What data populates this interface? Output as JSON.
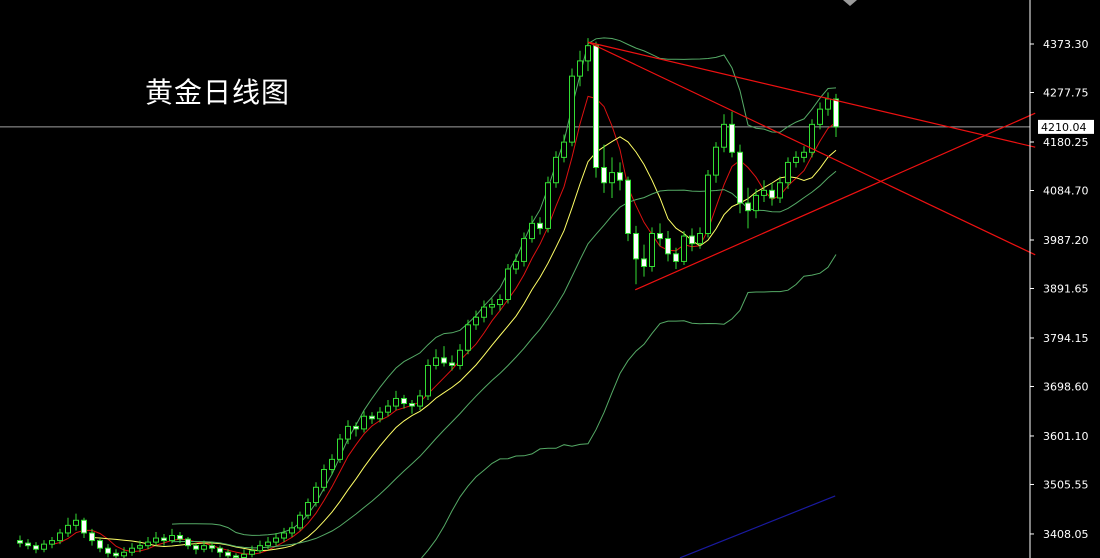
{
  "chart_data": {
    "type": "candlestick",
    "title": "黄金日线图",
    "xlabel": "",
    "ylabel": "",
    "ylim": [
      3360.7,
      4460.0
    ],
    "grid": false,
    "background": "#000000",
    "yticks": [
      "4373.30",
      "4277.75",
      "4180.25",
      "4084.70",
      "3987.20",
      "3891.65",
      "3794.15",
      "3698.60",
      "3601.10",
      "3505.55",
      "3408.05"
    ],
    "current_price": "4210.04",
    "colors": {
      "candle_outline": "#33dd33",
      "bull_fill": "#000000",
      "bear_fill": "#ffffff",
      "ma_fast": "#dd1111",
      "ma_slow": "#ffff66",
      "bands": "#55aa66",
      "trendline": "#ee1111",
      "channel": "#1a1aa0",
      "price_line": "#a0a0a0",
      "axis": "#ffffff"
    },
    "indicators": [
      {
        "type": "MA",
        "period": 5,
        "color_key": "ma_fast"
      },
      {
        "type": "MA",
        "period": 10,
        "color_key": "ma_slow"
      },
      {
        "type": "Bollinger",
        "period": 20,
        "deviation": 2,
        "color_key": "bands"
      }
    ],
    "trendlines": [
      {
        "from": [
          71,
          4377
        ],
        "to": [
          126.9,
          4170
        ],
        "color_key": "trendline"
      },
      {
        "from": [
          71,
          4377
        ],
        "to": [
          126.9,
          3958
        ],
        "color_key": "trendline"
      },
      {
        "from": [
          76.9,
          3889
        ],
        "to": [
          126.9,
          4237
        ],
        "color_key": "trendline"
      },
      {
        "from": [
          82.5,
          3361
        ],
        "to": [
          101.9,
          3483
        ],
        "color_key": "channel"
      }
    ],
    "ohlc": [
      [
        3395,
        3405,
        3382,
        3390
      ],
      [
        3390,
        3398,
        3378,
        3385
      ],
      [
        3385,
        3392,
        3370,
        3378
      ],
      [
        3378,
        3396,
        3372,
        3388
      ],
      [
        3388,
        3402,
        3380,
        3395
      ],
      [
        3395,
        3418,
        3388,
        3410
      ],
      [
        3410,
        3440,
        3402,
        3425
      ],
      [
        3425,
        3448,
        3415,
        3435
      ],
      [
        3435,
        3440,
        3400,
        3410
      ],
      [
        3410,
        3418,
        3385,
        3395
      ],
      [
        3395,
        3400,
        3372,
        3380
      ],
      [
        3380,
        3388,
        3362,
        3370
      ],
      [
        3370,
        3378,
        3355,
        3365
      ],
      [
        3365,
        3382,
        3358,
        3372
      ],
      [
        3372,
        3390,
        3365,
        3380
      ],
      [
        3380,
        3395,
        3372,
        3385
      ],
      [
        3385,
        3402,
        3378,
        3392
      ],
      [
        3392,
        3412,
        3385,
        3400
      ],
      [
        3400,
        3408,
        3385,
        3395
      ],
      [
        3395,
        3418,
        3390,
        3405
      ],
      [
        3405,
        3412,
        3390,
        3398
      ],
      [
        3398,
        3402,
        3378,
        3385
      ],
      [
        3385,
        3390,
        3368,
        3378
      ],
      [
        3378,
        3395,
        3372,
        3385
      ],
      [
        3385,
        3392,
        3372,
        3380
      ],
      [
        3380,
        3385,
        3362,
        3372
      ],
      [
        3372,
        3378,
        3355,
        3365
      ],
      [
        3365,
        3370,
        3350,
        3360
      ],
      [
        3360,
        3378,
        3355,
        3368
      ],
      [
        3368,
        3385,
        3362,
        3375
      ],
      [
        3375,
        3395,
        3370,
        3385
      ],
      [
        3385,
        3402,
        3378,
        3392
      ],
      [
        3392,
        3410,
        3385,
        3400
      ],
      [
        3400,
        3420,
        3392,
        3410
      ],
      [
        3410,
        3432,
        3402,
        3420
      ],
      [
        3420,
        3452,
        3415,
        3445
      ],
      [
        3445,
        3478,
        3438,
        3470
      ],
      [
        3470,
        3510,
        3462,
        3500
      ],
      [
        3500,
        3545,
        3492,
        3535
      ],
      [
        3535,
        3565,
        3525,
        3555
      ],
      [
        3555,
        3605,
        3548,
        3595
      ],
      [
        3595,
        3632,
        3585,
        3620
      ],
      [
        3620,
        3628,
        3600,
        3615
      ],
      [
        3615,
        3650,
        3608,
        3640
      ],
      [
        3640,
        3648,
        3625,
        3635
      ],
      [
        3635,
        3658,
        3628,
        3648
      ],
      [
        3648,
        3672,
        3640,
        3660
      ],
      [
        3660,
        3690,
        3652,
        3675
      ],
      [
        3675,
        3682,
        3655,
        3665
      ],
      [
        3665,
        3672,
        3645,
        3660
      ],
      [
        3660,
        3692,
        3652,
        3680
      ],
      [
        3680,
        3752,
        3672,
        3740
      ],
      [
        3740,
        3772,
        3732,
        3755
      ],
      [
        3755,
        3778,
        3738,
        3745
      ],
      [
        3745,
        3760,
        3730,
        3740
      ],
      [
        3740,
        3782,
        3732,
        3770
      ],
      [
        3770,
        3830,
        3762,
        3820
      ],
      [
        3820,
        3848,
        3810,
        3835
      ],
      [
        3835,
        3868,
        3825,
        3855
      ],
      [
        3855,
        3872,
        3840,
        3860
      ],
      [
        3860,
        3880,
        3848,
        3870
      ],
      [
        3870,
        3940,
        3862,
        3930
      ],
      [
        3930,
        3960,
        3920,
        3945
      ],
      [
        3945,
        4002,
        3935,
        3990
      ],
      [
        3990,
        4035,
        3982,
        4020
      ],
      [
        4020,
        4032,
        3998,
        4010
      ],
      [
        4010,
        4112,
        4002,
        4100
      ],
      [
        4100,
        4162,
        4090,
        4150
      ],
      [
        4150,
        4195,
        4140,
        4180
      ],
      [
        4180,
        4325,
        4172,
        4310
      ],
      [
        4310,
        4360,
        4290,
        4340
      ],
      [
        4340,
        4385,
        4320,
        4370
      ],
      [
        4370,
        4378,
        4110,
        4130
      ],
      [
        4130,
        4175,
        4080,
        4100
      ],
      [
        4100,
        4150,
        4070,
        4120
      ],
      [
        4120,
        4140,
        4085,
        4105
      ],
      [
        4105,
        4112,
        3985,
        4000
      ],
      [
        4000,
        4015,
        3900,
        3950
      ],
      [
        3950,
        3978,
        3915,
        3935
      ],
      [
        3935,
        4012,
        3925,
        4000
      ],
      [
        4000,
        4020,
        3975,
        3990
      ],
      [
        3990,
        4005,
        3945,
        3960
      ],
      [
        3960,
        3972,
        3930,
        3945
      ],
      [
        3945,
        4005,
        3938,
        3995
      ],
      [
        3995,
        4010,
        3965,
        3980
      ],
      [
        3980,
        4012,
        3970,
        4000
      ],
      [
        4000,
        4125,
        3992,
        4115
      ],
      [
        4115,
        4180,
        4100,
        4170
      ],
      [
        4170,
        4235,
        4160,
        4215
      ],
      [
        4215,
        4240,
        4150,
        4160
      ],
      [
        4160,
        4175,
        4040,
        4060
      ],
      [
        4060,
        4090,
        4010,
        4045
      ],
      [
        4045,
        4088,
        4030,
        4075
      ],
      [
        4075,
        4105,
        4062,
        4085
      ],
      [
        4085,
        4100,
        4055,
        4070
      ],
      [
        4070,
        4112,
        4060,
        4100
      ],
      [
        4100,
        4150,
        4088,
        4140
      ],
      [
        4140,
        4162,
        4130,
        4150
      ],
      [
        4150,
        4172,
        4140,
        4160
      ],
      [
        4160,
        4225,
        4150,
        4215
      ],
      [
        4215,
        4258,
        4205,
        4245
      ],
      [
        4245,
        4278,
        4232,
        4265
      ],
      [
        4265,
        4275,
        4190,
        4210
      ]
    ]
  }
}
